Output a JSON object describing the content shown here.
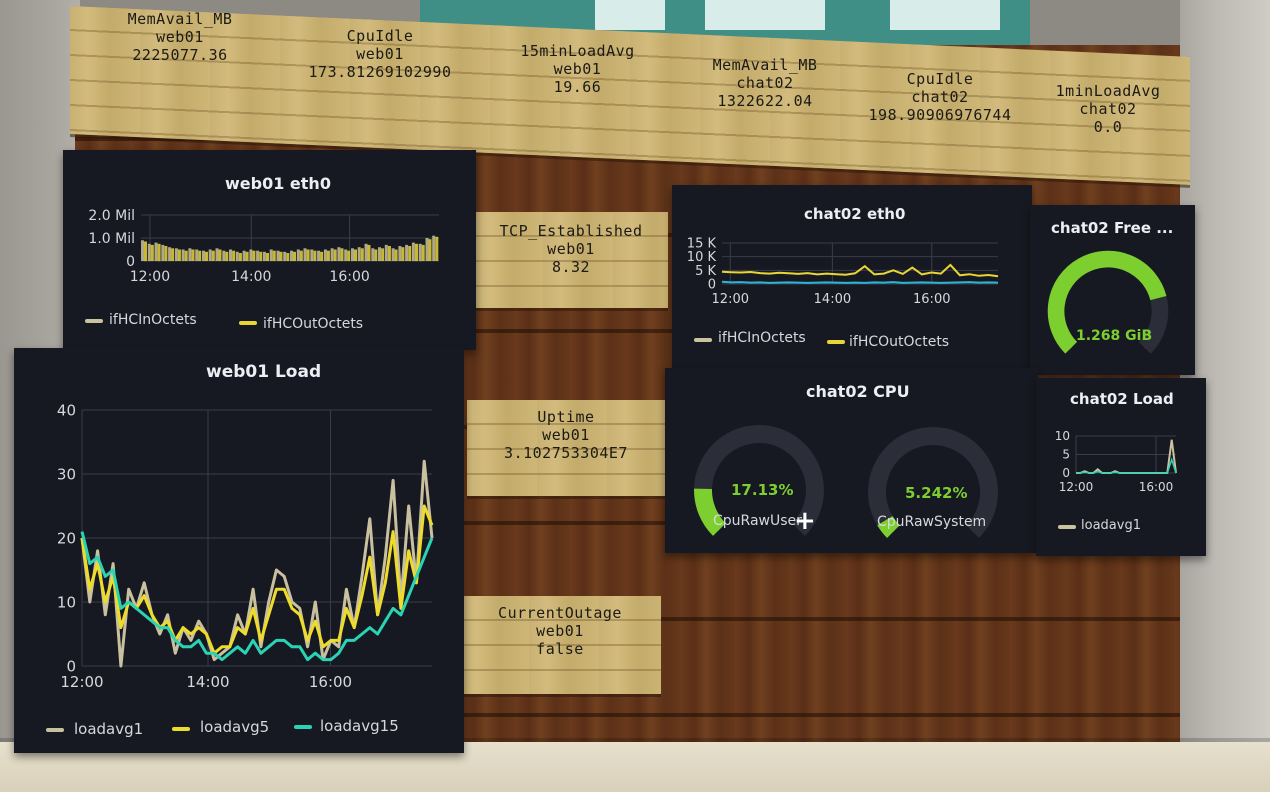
{
  "signs": [
    {
      "id": "memavail-web01",
      "lines": [
        "MemAvail_MB",
        "web01",
        "2225077.36"
      ]
    },
    {
      "id": "cpuidle-web01",
      "lines": [
        "CpuIdle",
        "web01",
        "173.81269102990"
      ]
    },
    {
      "id": "load15-web01",
      "lines": [
        "15minLoadAvg",
        "web01",
        "19.66"
      ]
    },
    {
      "id": "memavail-chat02",
      "lines": [
        "MemAvail_MB",
        "chat02",
        "1322622.04"
      ]
    },
    {
      "id": "cpuidle-chat02",
      "lines": [
        "CpuIdle",
        "chat02",
        "198.90906976744"
      ]
    },
    {
      "id": "load1-chat02",
      "lines": [
        "1minLoadAvg",
        "chat02",
        "0.0"
      ]
    },
    {
      "id": "tcp-web01",
      "lines": [
        "TCP_Established",
        "web01",
        "8.32"
      ]
    },
    {
      "id": "uptime-web01",
      "lines": [
        "Uptime",
        "web01",
        "3.102753304E7"
      ]
    },
    {
      "id": "outage-web01",
      "lines": [
        "CurrentOutage",
        "web01",
        "false"
      ]
    }
  ],
  "panels": {
    "web01_eth0": {
      "title": "web01 eth0",
      "yticks": [
        "2.0 Mil",
        "1.0 Mil",
        "0"
      ],
      "xticks": [
        "12:00",
        "14:00",
        "16:00"
      ],
      "legend": [
        "ifHCInOctets",
        "ifHCOutOctets"
      ],
      "colors": [
        "#c9c3a0",
        "#e8d634"
      ]
    },
    "web01_load": {
      "title": "web01 Load",
      "yticks": [
        "40",
        "30",
        "20",
        "10",
        "0"
      ],
      "xticks": [
        "12:00",
        "14:00",
        "16:00"
      ],
      "legend": [
        "loadavg1",
        "loadavg5",
        "loadavg15"
      ],
      "colors": [
        "#c8c09e",
        "#efdc2a",
        "#2ad3b4"
      ]
    },
    "chat02_eth0": {
      "title": "chat02 eth0",
      "yticks": [
        "15 K",
        "10 K",
        "5 K",
        "0"
      ],
      "xticks": [
        "12:00",
        "14:00",
        "16:00"
      ],
      "legend": [
        "ifHCInOctets",
        "ifHCOutOctets"
      ],
      "colors": [
        "#c9c3a0",
        "#e8d634"
      ]
    },
    "chat02_free": {
      "title": "chat02 Free ...",
      "value": "1.268 GiB",
      "fraction": 0.78,
      "color": "#7ccf2e"
    },
    "chat02_cpu": {
      "title": "chat02 CPU",
      "gauges": [
        {
          "value": "17.13%",
          "label": "CpuRawUser",
          "fraction": 0.1713
        },
        {
          "value": "5.242%",
          "label": "CpuRawSystem",
          "fraction": 0.05242
        }
      ],
      "color": "#7ccf2e"
    },
    "chat02_load": {
      "title": "chat02 Load",
      "yticks": [
        "10",
        "5",
        "0"
      ],
      "xticks": [
        "12:00",
        "16:00"
      ],
      "legend": [
        "loadavg1"
      ],
      "colors": [
        "#c9c3a0"
      ]
    }
  },
  "chart_data": [
    {
      "type": "bar",
      "title": "web01 eth0",
      "series": [
        {
          "name": "ifHCInOctets",
          "values": [
            0.9,
            0.75,
            0.8,
            0.7,
            0.6,
            0.55,
            0.5,
            0.55,
            0.5,
            0.45,
            0.5,
            0.55,
            0.45,
            0.5,
            0.4,
            0.45,
            0.5,
            0.45,
            0.4,
            0.5,
            0.45,
            0.4,
            0.45,
            0.5,
            0.55,
            0.5,
            0.45,
            0.5,
            0.55,
            0.6,
            0.5,
            0.55,
            0.6,
            0.75,
            0.55,
            0.6,
            0.7,
            0.55,
            0.65,
            0.7,
            0.8,
            0.75,
            1.0,
            1.1
          ]
        },
        {
          "name": "ifHCOutOctets",
          "values": [
            0.85,
            0.7,
            0.75,
            0.65,
            0.55,
            0.5,
            0.45,
            0.5,
            0.45,
            0.4,
            0.45,
            0.5,
            0.4,
            0.45,
            0.35,
            0.4,
            0.45,
            0.4,
            0.35,
            0.45,
            0.4,
            0.35,
            0.4,
            0.45,
            0.5,
            0.45,
            0.4,
            0.45,
            0.5,
            0.55,
            0.45,
            0.5,
            0.55,
            0.7,
            0.5,
            0.55,
            0.65,
            0.5,
            0.6,
            0.65,
            0.75,
            0.7,
            0.95,
            1.05
          ]
        }
      ],
      "ylim": [
        0,
        2.0
      ]
    },
    {
      "type": "line",
      "title": "web01 Load",
      "series": [
        {
          "name": "loadavg1",
          "values": [
            20,
            10,
            18,
            8,
            16,
            0,
            12,
            9,
            13,
            8,
            5,
            8,
            2,
            6,
            4,
            7,
            5,
            1,
            2,
            3,
            8,
            5,
            12,
            3,
            10,
            15,
            14,
            10,
            9,
            3,
            10,
            1,
            4,
            3,
            12,
            6,
            14,
            23,
            8,
            17,
            29,
            10,
            25,
            13,
            32,
            20
          ]
        },
        {
          "name": "loadavg5",
          "values": [
            20,
            12,
            16,
            10,
            14,
            6,
            10,
            9,
            11,
            8,
            6,
            7,
            4,
            6,
            5,
            6,
            5,
            2,
            3,
            3,
            6,
            5,
            9,
            4,
            8,
            12,
            12,
            9,
            8,
            4,
            7,
            3,
            4,
            4,
            9,
            6,
            11,
            17,
            8,
            13,
            21,
            9,
            18,
            13,
            25,
            22
          ]
        },
        {
          "name": "loadavg15",
          "values": [
            21,
            16,
            17,
            14,
            15,
            9,
            10,
            9,
            8,
            7,
            6,
            6,
            4,
            3,
            3,
            4,
            2,
            2,
            1,
            2,
            3,
            2,
            4,
            2,
            3,
            4,
            4,
            3,
            3,
            1,
            2,
            1,
            1,
            2,
            4,
            4,
            5,
            6,
            5,
            7,
            9,
            8,
            11,
            14,
            17,
            20
          ]
        }
      ],
      "ylim": [
        0,
        40
      ]
    },
    {
      "type": "line",
      "title": "chat02 eth0",
      "series": [
        {
          "name": "ifHCInOctets",
          "values": [
            800,
            600,
            700,
            500,
            600,
            400,
            500,
            600,
            500,
            400,
            500,
            600,
            500,
            400,
            500,
            400,
            600,
            500,
            700,
            400,
            500,
            600,
            500,
            400,
            500,
            600,
            700,
            500,
            600,
            500
          ]
        },
        {
          "name": "ifHCOutOctets",
          "values": [
            4500,
            4300,
            4200,
            4400,
            4000,
            3800,
            4100,
            3900,
            3700,
            4000,
            3500,
            3800,
            3600,
            3400,
            3900,
            6500,
            3500,
            3800,
            5000,
            3700,
            6000,
            3500,
            4200,
            3800,
            7000,
            3200,
            3600,
            3000,
            3300,
            2800
          ]
        }
      ],
      "ylim": [
        0,
        15000
      ]
    },
    {
      "type": "line",
      "title": "chat02 Load",
      "series": [
        {
          "name": "loadavg1",
          "values": [
            0,
            0,
            0.5,
            0,
            0,
            1,
            0,
            0,
            0,
            0.5,
            0,
            0,
            0,
            0,
            0,
            0,
            0,
            0,
            0,
            0,
            0,
            0,
            9,
            0
          ]
        }
      ],
      "ylim": [
        0,
        10
      ]
    }
  ]
}
